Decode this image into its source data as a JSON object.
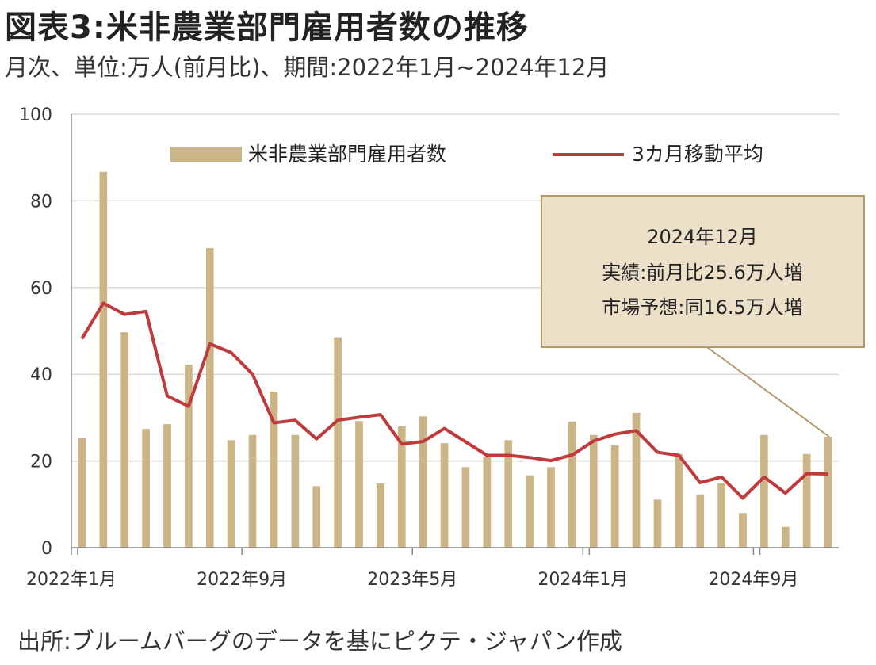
{
  "title": "図表3:米非農業部門雇用者数の推移",
  "subtitle": "月次、単位:万人(前月比)、期間:2022年1月~2024年12月",
  "source": "出所:ブルームバーグのデータを基にピクテ・ジャパン作成",
  "colors": {
    "bar": "#cbb486",
    "line": "#c0393b",
    "annotation_bg": "#ede0c8",
    "annotation_border": "#b39a66",
    "grid": "#d9d9d9"
  },
  "annotation": {
    "line1": "2024年12月",
    "line2": "実績:前月比25.6万人増",
    "line3": "市場予想:同16.5万人増"
  },
  "chart_data": {
    "type": "bar",
    "title": "",
    "xlabel": "",
    "ylabel": "",
    "ylim": [
      0,
      100
    ],
    "yticks": [
      0,
      20,
      40,
      60,
      80,
      100
    ],
    "grid": true,
    "legend_placement": "top",
    "x_tick_labels": [
      {
        "index": 0,
        "label": "2022年1月"
      },
      {
        "index": 8,
        "label": "2022年9月"
      },
      {
        "index": 16,
        "label": "2023年5月"
      },
      {
        "index": 24,
        "label": "2024年1月"
      },
      {
        "index": 32,
        "label": "2024年9月"
      }
    ],
    "categories": [
      "2022-01",
      "2022-02",
      "2022-03",
      "2022-04",
      "2022-05",
      "2022-06",
      "2022-07",
      "2022-08",
      "2022-09",
      "2022-10",
      "2022-11",
      "2022-12",
      "2023-01",
      "2023-02",
      "2023-03",
      "2023-04",
      "2023-05",
      "2023-06",
      "2023-07",
      "2023-08",
      "2023-09",
      "2023-10",
      "2023-11",
      "2023-12",
      "2024-01",
      "2024-02",
      "2024-03",
      "2024-04",
      "2024-05",
      "2024-06",
      "2024-07",
      "2024-08",
      "2024-09",
      "2024-10",
      "2024-11",
      "2024-12"
    ],
    "series": [
      {
        "name": "米非農業部門雇用者数",
        "type": "bar",
        "values": [
          25.4,
          86.7,
          49.7,
          27.4,
          28.5,
          42.2,
          69.1,
          24.8,
          26.0,
          36.0,
          26.0,
          14.2,
          48.5,
          29.2,
          14.8,
          28.0,
          30.3,
          24.1,
          18.6,
          21.0,
          24.8,
          16.7,
          18.6,
          29.1,
          26.0,
          23.6,
          31.1,
          11.1,
          21.6,
          12.3,
          14.9,
          8.0,
          26.0,
          4.8,
          21.6,
          25.6
        ]
      },
      {
        "name": "3カ月移動平均",
        "type": "line",
        "values": [
          48.2,
          56.4,
          53.8,
          54.5,
          35.0,
          32.6,
          47.0,
          45.0,
          40.0,
          28.8,
          29.4,
          25.1,
          29.4,
          30.1,
          30.7,
          23.9,
          24.5,
          27.5,
          24.4,
          21.3,
          21.3,
          20.8,
          20.1,
          21.4,
          24.6,
          26.2,
          27.0,
          22.0,
          21.3,
          15.0,
          16.3,
          11.4,
          16.3,
          12.6,
          17.1,
          17.0
        ]
      }
    ]
  }
}
